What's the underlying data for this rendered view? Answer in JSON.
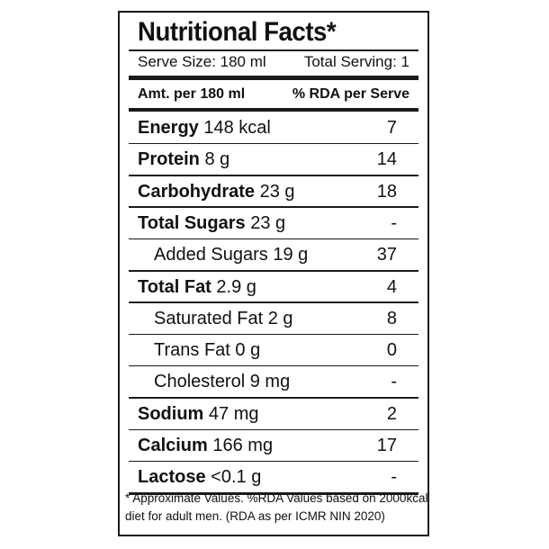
{
  "title": "Nutritional Facts*",
  "serve_size": "Serve Size: 180 ml",
  "total_serving": "Total Serving: 1",
  "header": {
    "amount": "Amt. per 180 ml",
    "rda": "% RDA per Serve"
  },
  "nutrients": [
    {
      "name": "Energy",
      "amount": " 148 kcal",
      "rda": "7",
      "indent": false
    },
    {
      "name": "Protein",
      "amount": " 8 g",
      "rda": "14",
      "indent": false
    },
    {
      "name": "Carbohydrate",
      "amount": " 23 g",
      "rda": "18",
      "indent": false
    },
    {
      "name": "Total Sugars",
      "amount": " 23 g",
      "rda": "-",
      "indent": false
    },
    {
      "name": "Added Sugars",
      "amount": " 19 g",
      "rda": "37",
      "indent": true
    },
    {
      "name": "Total Fat",
      "amount": " 2.9 g",
      "rda": "4",
      "indent": false
    },
    {
      "name": "Saturated Fat",
      "amount": " 2 g",
      "rda": "8",
      "indent": true
    },
    {
      "name": "Trans Fat",
      "amount": " 0 g",
      "rda": "0",
      "indent": true
    },
    {
      "name": "Cholesterol",
      "amount": " 9 mg",
      "rda": "-",
      "indent": true
    },
    {
      "name": "Sodium",
      "amount": " 47 mg",
      "rda": "2",
      "indent": false
    },
    {
      "name": "Calcium",
      "amount": " 166 mg",
      "rda": "17",
      "indent": false
    },
    {
      "name": "Lactose",
      "amount": " <0.1 g",
      "rda": "-",
      "indent": false
    }
  ],
  "footnote": {
    "line1": "* Approximate Values. %RDA Values based on 2000kcal",
    "line2": "diet for adult men. (RDA as per ICMR NIN 2020)"
  }
}
